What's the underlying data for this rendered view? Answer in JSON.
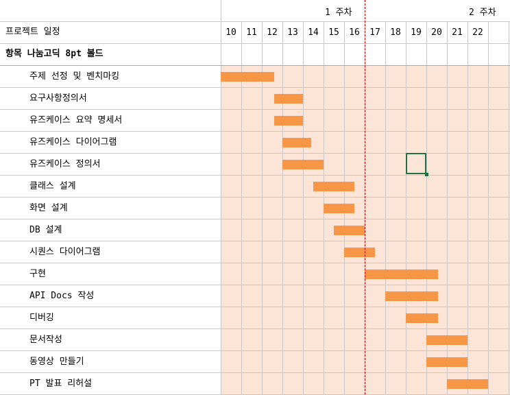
{
  "sheet": {
    "project_label": "프로젝트 일정",
    "header_row_label": "항목 나눔고딕 8pt 볼드",
    "week_labels": [
      "1 주차",
      "2 주차"
    ],
    "days": [
      "10",
      "11",
      "12",
      "13",
      "14",
      "15",
      "16",
      "17",
      "18",
      "19",
      "20",
      "21",
      "22"
    ]
  },
  "tasks": [
    {
      "label": "주제 선정 및 벤치마킹",
      "start": 10.0,
      "end": 12.6
    },
    {
      "label": "요구사항정의서",
      "start": 12.6,
      "end": 14.0
    },
    {
      "label": "유즈케이스 요약 명세서",
      "start": 12.6,
      "end": 14.0
    },
    {
      "label": "유즈케이스 다이어그램",
      "start": 13.0,
      "end": 14.4
    },
    {
      "label": "유즈케이스 정의서",
      "start": 13.0,
      "end": 15.0
    },
    {
      "label": "클래스 설계",
      "start": 14.5,
      "end": 16.5
    },
    {
      "label": "화면 설계",
      "start": 15.0,
      "end": 16.5
    },
    {
      "label": "DB 설계",
      "start": 15.5,
      "end": 17.0
    },
    {
      "label": "시퀀스 다이어그램",
      "start": 16.0,
      "end": 17.5
    },
    {
      "label": "구현",
      "start": 17.0,
      "end": 20.55
    },
    {
      "label": "API Docs 작성",
      "start": 18.0,
      "end": 20.55
    },
    {
      "label": "디버깅",
      "start": 19.0,
      "end": 20.55
    },
    {
      "label": "문서작성",
      "start": 20.0,
      "end": 22.0
    },
    {
      "label": "동영상 만들기",
      "start": 20.0,
      "end": 22.0
    },
    {
      "label": "PT 발표 리허설",
      "start": 21.0,
      "end": 23.0
    }
  ],
  "colors": {
    "bar": "#f79646",
    "shade": "#fce4d6",
    "grid": "#c8c8c8",
    "today_line": "#c00000",
    "selection": "#217346"
  }
}
